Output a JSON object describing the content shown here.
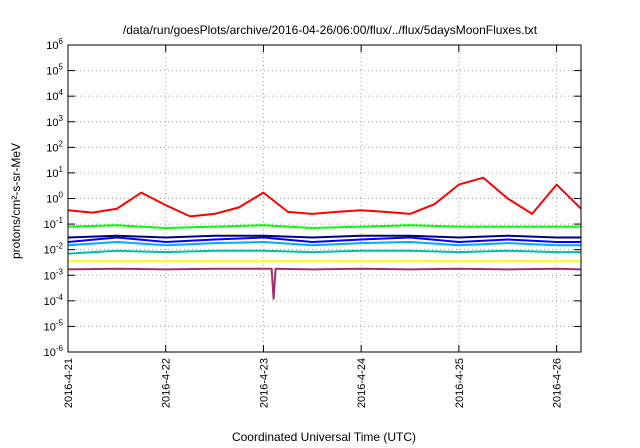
{
  "chart_data": {
    "type": "line",
    "title": "/data/run/goesPlots/archive/2016-04-26/06:00/flux/../flux/5daysMoonFluxes.txt",
    "xlabel": "Coordinated Universal Time (UTC)",
    "ylabel": "protons/cm²-s-sr-MeV",
    "y_scale": "log",
    "ylim": [
      1e-06,
      1000000.0
    ],
    "xlim": [
      "2016-04-21T00:00",
      "2016-04-26T06:00"
    ],
    "x_ticks": [
      "2016-4-21",
      "2016-4-22",
      "2016-4-23",
      "2016-4-24",
      "2016-4-25",
      "2016-4-26"
    ],
    "y_ticks": [
      {
        "value": 1e-06,
        "base": "10",
        "exp": "-6"
      },
      {
        "value": 1e-05,
        "base": "10",
        "exp": "-5"
      },
      {
        "value": 0.0001,
        "base": "10",
        "exp": "-4"
      },
      {
        "value": 0.001,
        "base": "10",
        "exp": "-3"
      },
      {
        "value": 0.01,
        "base": "10",
        "exp": "-2"
      },
      {
        "value": 0.1,
        "base": "10",
        "exp": "-1"
      },
      {
        "value": 1,
        "base": "10",
        "exp": "0"
      },
      {
        "value": 10,
        "base": "10",
        "exp": "1"
      },
      {
        "value": 100,
        "base": "10",
        "exp": "2"
      },
      {
        "value": 1000,
        "base": "10",
        "exp": "3"
      },
      {
        "value": 10000,
        "base": "10",
        "exp": "4"
      },
      {
        "value": 100000,
        "base": "10",
        "exp": "5"
      },
      {
        "value": 1000000,
        "base": "10",
        "exp": "6"
      }
    ],
    "grid": true,
    "series": [
      {
        "color": "#ff0000",
        "x": [
          "2016-04-21T00:00",
          "2016-04-21T06:00",
          "2016-04-21T12:00",
          "2016-04-21T18:00",
          "2016-04-22T00:00",
          "2016-04-22T06:00",
          "2016-04-22T12:00",
          "2016-04-22T18:00",
          "2016-04-23T00:00",
          "2016-04-23T06:00",
          "2016-04-23T12:00",
          "2016-04-23T18:00",
          "2016-04-24T00:00",
          "2016-04-24T06:00",
          "2016-04-24T12:00",
          "2016-04-24T18:00",
          "2016-04-25T00:00",
          "2016-04-25T06:00",
          "2016-04-25T12:00",
          "2016-04-25T18:00",
          "2016-04-26T00:00",
          "2016-04-26T06:00"
        ],
        "values": [
          0.35,
          0.28,
          0.4,
          1.7,
          0.55,
          0.2,
          0.25,
          0.45,
          1.7,
          0.3,
          0.25,
          0.3,
          0.35,
          0.3,
          0.25,
          0.6,
          3.5,
          6.5,
          1.0,
          0.25,
          3.5,
          0.4
        ]
      },
      {
        "color": "#00ff00",
        "x": [
          "2016-04-21T00:00",
          "2016-04-21T12:00",
          "2016-04-22T00:00",
          "2016-04-22T12:00",
          "2016-04-23T00:00",
          "2016-04-23T12:00",
          "2016-04-24T00:00",
          "2016-04-24T12:00",
          "2016-04-25T00:00",
          "2016-04-25T12:00",
          "2016-04-26T00:00",
          "2016-04-26T06:00"
        ],
        "values": [
          0.08,
          0.09,
          0.07,
          0.08,
          0.09,
          0.07,
          0.08,
          0.09,
          0.08,
          0.08,
          0.08,
          0.08
        ]
      },
      {
        "color": "#0000ff",
        "x": [
          "2016-04-21T00:00",
          "2016-04-21T12:00",
          "2016-04-22T00:00",
          "2016-04-22T12:00",
          "2016-04-23T00:00",
          "2016-04-23T12:00",
          "2016-04-24T00:00",
          "2016-04-24T12:00",
          "2016-04-25T00:00",
          "2016-04-25T12:00",
          "2016-04-26T00:00",
          "2016-04-26T06:00"
        ],
        "values": [
          0.02,
          0.03,
          0.02,
          0.025,
          0.03,
          0.02,
          0.025,
          0.03,
          0.02,
          0.025,
          0.02,
          0.02
        ]
      },
      {
        "color": "#00aaff",
        "x": [
          "2016-04-21T00:00",
          "2016-04-21T12:00",
          "2016-04-22T00:00",
          "2016-04-22T12:00",
          "2016-04-23T00:00",
          "2016-04-23T12:00",
          "2016-04-24T00:00",
          "2016-04-24T12:00",
          "2016-04-25T00:00",
          "2016-04-25T12:00",
          "2016-04-26T00:00",
          "2016-04-26T06:00"
        ],
        "values": [
          0.015,
          0.02,
          0.015,
          0.018,
          0.02,
          0.015,
          0.018,
          0.02,
          0.015,
          0.018,
          0.015,
          0.015
        ]
      },
      {
        "color": "#000080",
        "x": [
          "2016-04-21T00:00",
          "2016-04-21T12:00",
          "2016-04-22T00:00",
          "2016-04-22T12:00",
          "2016-04-23T00:00",
          "2016-04-23T12:00",
          "2016-04-24T00:00",
          "2016-04-24T12:00",
          "2016-04-25T00:00",
          "2016-04-25T12:00",
          "2016-04-26T00:00",
          "2016-04-26T06:00"
        ],
        "values": [
          0.03,
          0.035,
          0.03,
          0.035,
          0.035,
          0.03,
          0.035,
          0.035,
          0.03,
          0.035,
          0.03,
          0.03
        ]
      },
      {
        "color": "#00c0a0",
        "x": [
          "2016-04-21T00:00",
          "2016-04-21T12:00",
          "2016-04-22T00:00",
          "2016-04-22T12:00",
          "2016-04-23T00:00",
          "2016-04-23T12:00",
          "2016-04-24T00:00",
          "2016-04-24T12:00",
          "2016-04-25T00:00",
          "2016-04-25T12:00",
          "2016-04-26T00:00",
          "2016-04-26T06:00"
        ],
        "values": [
          0.007,
          0.009,
          0.008,
          0.009,
          0.009,
          0.008,
          0.009,
          0.009,
          0.008,
          0.009,
          0.008,
          0.008
        ]
      },
      {
        "color": "#ffff00",
        "x": [
          "2016-04-21T00:00",
          "2016-04-22T00:00",
          "2016-04-23T00:00",
          "2016-04-24T00:00",
          "2016-04-25T00:00",
          "2016-04-26T00:00",
          "2016-04-26T06:00"
        ],
        "values": [
          0.0035,
          0.0035,
          0.0035,
          0.0035,
          0.0035,
          0.0035,
          0.0035
        ]
      },
      {
        "color": "#a0306a",
        "x": [
          "2016-04-21T00:00",
          "2016-04-21T12:00",
          "2016-04-22T00:00",
          "2016-04-22T12:00",
          "2016-04-23T00:00",
          "2016-04-23T02:00",
          "2016-04-23T02:30",
          "2016-04-23T03:00",
          "2016-04-23T12:00",
          "2016-04-24T00:00",
          "2016-04-24T12:00",
          "2016-04-25T00:00",
          "2016-04-25T12:00",
          "2016-04-26T00:00",
          "2016-04-26T06:00"
        ],
        "values": [
          0.0017,
          0.0018,
          0.0017,
          0.0018,
          0.0018,
          0.0018,
          0.00012,
          0.0018,
          0.0017,
          0.0018,
          0.0017,
          0.0018,
          0.0017,
          0.0018,
          0.0017
        ]
      }
    ]
  }
}
